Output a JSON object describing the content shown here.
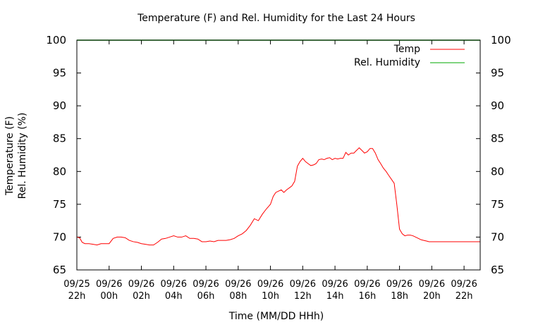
{
  "chart_data": {
    "type": "line",
    "title": "Temperature (F) and Rel. Humidity for the Last 24 Hours",
    "xlabel": "Time (MM/DD HHh)",
    "ylabel_lines": [
      "Temperature (F)",
      "Rel. Humidity (%)"
    ],
    "ylim": [
      65,
      100
    ],
    "y_ticks": [
      65,
      70,
      75,
      80,
      85,
      90,
      95,
      100
    ],
    "xlim": [
      22,
      47
    ],
    "x_ticks": [
      {
        "x": 22,
        "date": "09/25",
        "hour": "22h"
      },
      {
        "x": 24,
        "date": "09/26",
        "hour": "00h"
      },
      {
        "x": 26,
        "date": "09/26",
        "hour": "02h"
      },
      {
        "x": 28,
        "date": "09/26",
        "hour": "04h"
      },
      {
        "x": 30,
        "date": "09/26",
        "hour": "06h"
      },
      {
        "x": 32,
        "date": "09/26",
        "hour": "08h"
      },
      {
        "x": 34,
        "date": "09/26",
        "hour": "10h"
      },
      {
        "x": 36,
        "date": "09/26",
        "hour": "12h"
      },
      {
        "x": 38,
        "date": "09/26",
        "hour": "14h"
      },
      {
        "x": 40,
        "date": "09/26",
        "hour": "16h"
      },
      {
        "x": 42,
        "date": "09/26",
        "hour": "18h"
      },
      {
        "x": 44,
        "date": "09/26",
        "hour": "20h"
      },
      {
        "x": 46,
        "date": "09/26",
        "hour": "22h"
      }
    ],
    "legend_position": "top-right",
    "series": [
      {
        "name": "Temp",
        "color": "#ff0000",
        "points": [
          [
            22.0,
            70.0
          ],
          [
            22.17,
            69.9
          ],
          [
            22.33,
            69.2
          ],
          [
            22.5,
            69.0
          ],
          [
            22.75,
            69.0
          ],
          [
            23.0,
            68.9
          ],
          [
            23.25,
            68.8
          ],
          [
            23.5,
            69.0
          ],
          [
            23.75,
            69.0
          ],
          [
            24.0,
            69.0
          ],
          [
            24.25,
            69.8
          ],
          [
            24.5,
            70.0
          ],
          [
            24.75,
            70.0
          ],
          [
            25.0,
            69.9
          ],
          [
            25.25,
            69.5
          ],
          [
            25.5,
            69.3
          ],
          [
            25.75,
            69.2
          ],
          [
            26.0,
            69.0
          ],
          [
            26.25,
            68.9
          ],
          [
            26.5,
            68.8
          ],
          [
            26.75,
            68.8
          ],
          [
            27.0,
            69.2
          ],
          [
            27.25,
            69.7
          ],
          [
            27.5,
            69.8
          ],
          [
            27.75,
            70.0
          ],
          [
            28.0,
            70.2
          ],
          [
            28.25,
            70.0
          ],
          [
            28.5,
            70.0
          ],
          [
            28.75,
            70.2
          ],
          [
            29.0,
            69.8
          ],
          [
            29.25,
            69.8
          ],
          [
            29.5,
            69.7
          ],
          [
            29.75,
            69.3
          ],
          [
            30.0,
            69.3
          ],
          [
            30.25,
            69.4
          ],
          [
            30.5,
            69.3
          ],
          [
            30.75,
            69.5
          ],
          [
            31.0,
            69.5
          ],
          [
            31.25,
            69.5
          ],
          [
            31.5,
            69.6
          ],
          [
            31.75,
            69.8
          ],
          [
            32.0,
            70.2
          ],
          [
            32.25,
            70.5
          ],
          [
            32.5,
            71.0
          ],
          [
            32.75,
            71.8
          ],
          [
            33.0,
            72.8
          ],
          [
            33.25,
            72.5
          ],
          [
            33.5,
            73.5
          ],
          [
            33.75,
            74.3
          ],
          [
            34.0,
            75.0
          ],
          [
            34.17,
            76.2
          ],
          [
            34.33,
            76.8
          ],
          [
            34.5,
            77.0
          ],
          [
            34.67,
            77.2
          ],
          [
            34.83,
            76.8
          ],
          [
            35.0,
            77.2
          ],
          [
            35.17,
            77.5
          ],
          [
            35.33,
            77.8
          ],
          [
            35.5,
            78.5
          ],
          [
            35.67,
            80.8
          ],
          [
            35.83,
            81.5
          ],
          [
            36.0,
            82.0
          ],
          [
            36.17,
            81.5
          ],
          [
            36.33,
            81.2
          ],
          [
            36.5,
            80.9
          ],
          [
            36.67,
            81.0
          ],
          [
            36.83,
            81.2
          ],
          [
            37.0,
            81.8
          ],
          [
            37.17,
            81.9
          ],
          [
            37.33,
            81.8
          ],
          [
            37.5,
            82.0
          ],
          [
            37.67,
            82.1
          ],
          [
            37.83,
            81.8
          ],
          [
            38.0,
            82.0
          ],
          [
            38.17,
            81.9
          ],
          [
            38.33,
            82.0
          ],
          [
            38.5,
            82.0
          ],
          [
            38.67,
            82.9
          ],
          [
            38.83,
            82.5
          ],
          [
            39.0,
            82.8
          ],
          [
            39.17,
            82.8
          ],
          [
            39.33,
            83.2
          ],
          [
            39.5,
            83.6
          ],
          [
            39.67,
            83.2
          ],
          [
            39.83,
            82.8
          ],
          [
            40.0,
            83.0
          ],
          [
            40.17,
            83.5
          ],
          [
            40.33,
            83.5
          ],
          [
            40.5,
            82.8
          ],
          [
            40.67,
            81.8
          ],
          [
            40.83,
            81.2
          ],
          [
            41.0,
            80.5
          ],
          [
            41.17,
            80.0
          ],
          [
            41.33,
            79.4
          ],
          [
            41.5,
            78.8
          ],
          [
            41.67,
            78.2
          ],
          [
            41.83,
            75.0
          ],
          [
            42.0,
            71.2
          ],
          [
            42.17,
            70.5
          ],
          [
            42.33,
            70.2
          ],
          [
            42.5,
            70.3
          ],
          [
            42.67,
            70.3
          ],
          [
            42.83,
            70.2
          ],
          [
            43.0,
            70.0
          ],
          [
            43.17,
            69.8
          ],
          [
            43.33,
            69.6
          ],
          [
            43.5,
            69.5
          ],
          [
            43.67,
            69.4
          ],
          [
            43.83,
            69.3
          ],
          [
            44.0,
            69.3
          ],
          [
            44.5,
            69.3
          ],
          [
            45.0,
            69.3
          ],
          [
            45.5,
            69.3
          ],
          [
            46.0,
            69.3
          ],
          [
            46.5,
            69.3
          ],
          [
            47.0,
            69.3
          ]
        ]
      },
      {
        "name": "Rel. Humidity",
        "color": "#00aa00",
        "points": [
          [
            22.0,
            100
          ],
          [
            47.0,
            100
          ]
        ]
      }
    ]
  }
}
